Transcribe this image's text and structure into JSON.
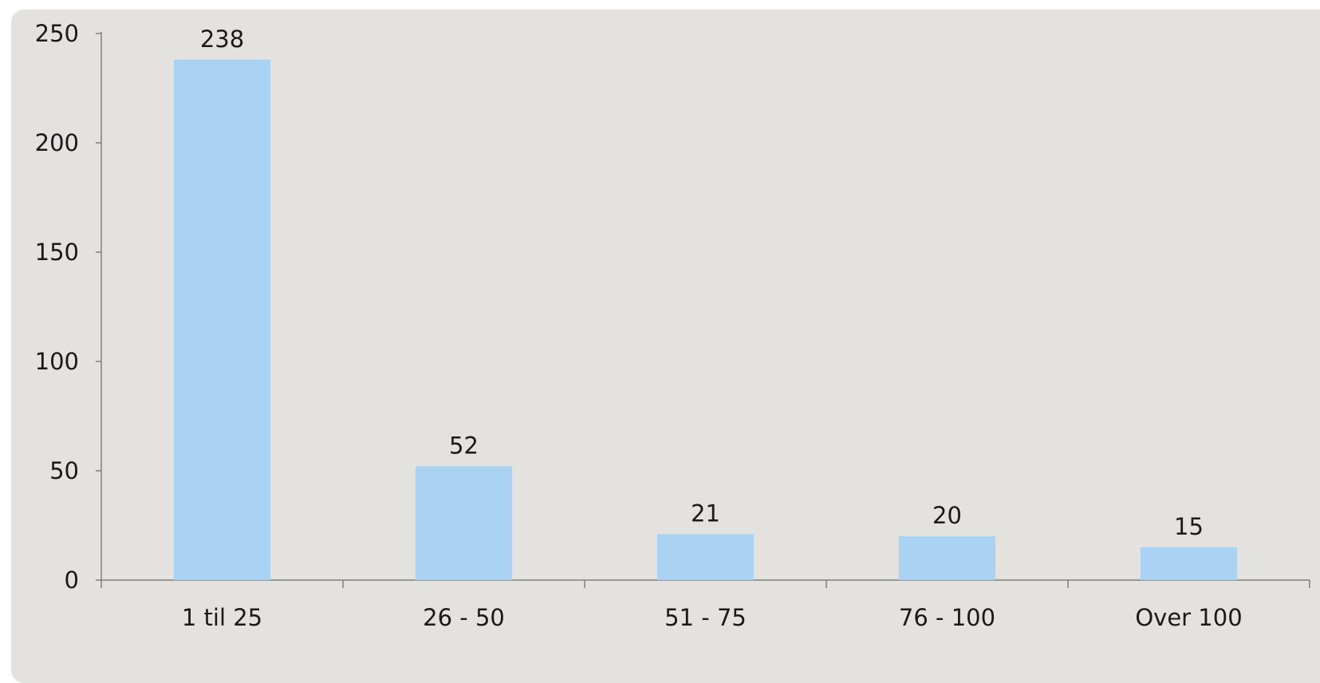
{
  "chart_data": {
    "type": "bar",
    "categories": [
      "1 til 25",
      "26 - 50",
      "51 - 75",
      "76 - 100",
      "Over 100"
    ],
    "values": [
      238,
      52,
      21,
      20,
      15
    ],
    "data_labels": [
      "238",
      "52",
      "21",
      "20",
      "15"
    ],
    "ylim": [
      0,
      250
    ],
    "yticks": [
      "0",
      "50",
      "100",
      "150",
      "200",
      "250"
    ],
    "title": "",
    "xlabel": "",
    "ylabel": "",
    "grid": false,
    "legend": false,
    "colors": {
      "bar": "#a9d2f3",
      "background": "#e4e2de",
      "axis": "#7f7f7f"
    }
  }
}
